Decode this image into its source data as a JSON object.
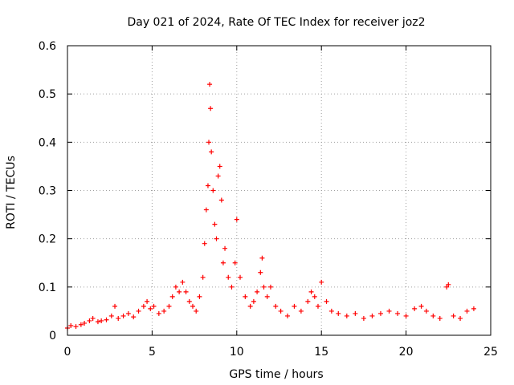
{
  "chart_data": {
    "type": "scatter",
    "title": "Day 021 of 2024, Rate Of TEC Index for receiver joz2",
    "xlabel": "GPS time / hours",
    "ylabel": "ROTI / TECUs",
    "xlim": [
      0,
      25
    ],
    "ylim": [
      0,
      0.6
    ],
    "xticks": [
      0,
      5,
      10,
      15,
      20,
      25
    ],
    "yticks": [
      0,
      0.1,
      0.2,
      0.3,
      0.4,
      0.5,
      0.6
    ],
    "xtick_labels": [
      "0",
      "5",
      "10",
      "15",
      "20",
      "25"
    ],
    "ytick_labels": [
      "0",
      "0.1",
      "0.2",
      "0.3",
      "0.4",
      "0.5",
      "0.6"
    ],
    "grid": true,
    "marker": "+",
    "marker_color": "#ff0000",
    "series": [
      {
        "name": "ROTI",
        "x": [
          0.0,
          0.2,
          0.5,
          0.8,
          1.0,
          1.3,
          1.5,
          1.8,
          2.0,
          2.3,
          2.6,
          2.8,
          3.0,
          3.3,
          3.6,
          3.9,
          4.2,
          4.5,
          4.7,
          4.9,
          5.1,
          5.4,
          5.7,
          6.0,
          6.2,
          6.4,
          6.6,
          6.8,
          7.0,
          7.2,
          7.4,
          7.6,
          7.8,
          8.0,
          8.1,
          8.2,
          8.3,
          8.35,
          8.4,
          8.45,
          8.5,
          8.6,
          8.7,
          8.8,
          8.9,
          9.0,
          9.1,
          9.2,
          9.3,
          9.5,
          9.7,
          9.9,
          10.0,
          10.2,
          10.5,
          10.8,
          11.0,
          11.2,
          11.4,
          11.5,
          11.6,
          11.8,
          12.0,
          12.3,
          12.6,
          13.0,
          13.4,
          13.8,
          14.2,
          14.4,
          14.6,
          14.8,
          15.0,
          15.3,
          15.6,
          16.0,
          16.5,
          17.0,
          17.5,
          18.0,
          18.5,
          19.0,
          19.5,
          20.0,
          20.5,
          20.9,
          21.2,
          21.6,
          22.0,
          22.4,
          22.5,
          22.8,
          23.2,
          23.6,
          24.0
        ],
        "y": [
          0.015,
          0.02,
          0.018,
          0.022,
          0.025,
          0.03,
          0.035,
          0.028,
          0.03,
          0.032,
          0.04,
          0.06,
          0.035,
          0.04,
          0.045,
          0.038,
          0.05,
          0.06,
          0.07,
          0.055,
          0.06,
          0.045,
          0.05,
          0.06,
          0.08,
          0.1,
          0.09,
          0.11,
          0.09,
          0.07,
          0.06,
          0.05,
          0.08,
          0.12,
          0.19,
          0.26,
          0.31,
          0.4,
          0.52,
          0.47,
          0.38,
          0.3,
          0.23,
          0.2,
          0.33,
          0.35,
          0.28,
          0.15,
          0.18,
          0.12,
          0.1,
          0.15,
          0.24,
          0.12,
          0.08,
          0.06,
          0.07,
          0.09,
          0.13,
          0.16,
          0.1,
          0.08,
          0.1,
          0.06,
          0.05,
          0.04,
          0.06,
          0.05,
          0.07,
          0.09,
          0.08,
          0.06,
          0.11,
          0.07,
          0.05,
          0.045,
          0.04,
          0.045,
          0.035,
          0.04,
          0.045,
          0.05,
          0.045,
          0.04,
          0.055,
          0.06,
          0.05,
          0.04,
          0.035,
          0.1,
          0.105,
          0.04,
          0.035,
          0.05,
          0.055
        ]
      }
    ]
  }
}
